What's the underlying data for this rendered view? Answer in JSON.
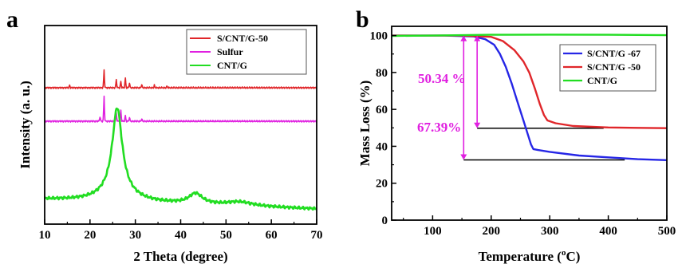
{
  "colors": {
    "red": "#e0262a",
    "magenta": "#e020e0",
    "green": "#22dd22",
    "blue": "#2626e6",
    "black": "#000000",
    "annotation": "#e020e0"
  },
  "chart_data": [
    {
      "panel_label": "a",
      "type": "line",
      "xlabel": "2 Theta (degree)",
      "ylabel": "Intensity (a. u.)",
      "xlim": [
        10,
        70
      ],
      "x_ticks": [
        "10",
        "20",
        "30",
        "40",
        "50",
        "60",
        "70"
      ],
      "y_ticks_labeled": false,
      "legend_position": "top-right",
      "legend": [
        {
          "label": "S/CNT/G-50",
          "color": "#e0262a"
        },
        {
          "label": "Sulfur",
          "color": "#e020e0"
        },
        {
          "label": "CNT/G",
          "color": "#22dd22"
        }
      ],
      "series": [
        {
          "name": "S/CNT/G-50",
          "color": "#e0262a",
          "baseline": 110,
          "peaks": [
            [
              23.1,
              22
            ],
            [
              25.8,
              10
            ],
            [
              26.8,
              8
            ],
            [
              27.8,
              12
            ],
            [
              28.7,
              6
            ],
            [
              31.4,
              4
            ],
            [
              15.5,
              3
            ],
            [
              34.2,
              3
            ],
            [
              37.0,
              2
            ]
          ]
        },
        {
          "name": "Sulfur",
          "color": "#e020e0",
          "baseline": 152,
          "peaks": [
            [
              23.1,
              31
            ],
            [
              22.2,
              6
            ],
            [
              25.8,
              10
            ],
            [
              26.8,
              14
            ],
            [
              27.8,
              7
            ],
            [
              28.7,
              5
            ],
            [
              31.4,
              3
            ]
          ]
        },
        {
          "name": "CNT/G",
          "color": "#22dd22",
          "baseline_start": 250,
          "baseline_end": 262,
          "broad_peaks": [
            [
              26.0,
              104,
              1.3
            ],
            [
              26.0,
              14,
              4.0
            ],
            [
              43.3,
              13,
              1.8
            ],
            [
              53.0,
              5,
              3.5
            ]
          ]
        }
      ]
    },
    {
      "panel_label": "b",
      "type": "line",
      "xlabel": "Temperature (oC)",
      "ylabel": "Mass Loss (%)",
      "xlim": [
        30,
        500
      ],
      "ylim": [
        0,
        105
      ],
      "x_ticks": [
        100,
        200,
        300,
        400,
        500
      ],
      "y_ticks": [
        0,
        20,
        40,
        60,
        80,
        100
      ],
      "legend_position": "top-right",
      "legend": [
        {
          "label": "S/CNT/G -67",
          "color": "#2626e6"
        },
        {
          "label": "S/CNT/G -50",
          "color": "#e0262a"
        },
        {
          "label": "CNT/G",
          "color": "#22dd22"
        }
      ],
      "annotations": [
        "50.34 %",
        "67.39%"
      ],
      "series": [
        {
          "name": "S/CNT/G -67",
          "color": "#2626e6",
          "x": [
            30,
            120,
            170,
            190,
            205,
            215,
            225,
            235,
            245,
            255,
            262,
            268,
            272,
            280,
            300,
            350,
            400,
            450,
            500
          ],
          "y": [
            100,
            100,
            99.5,
            98,
            95,
            90,
            83,
            74,
            64,
            54,
            47,
            41,
            38.5,
            38,
            37,
            35,
            34,
            33,
            32.5
          ]
        },
        {
          "name": "S/CNT/G -50",
          "color": "#e0262a",
          "x": [
            30,
            150,
            200,
            220,
            240,
            255,
            265,
            275,
            283,
            290,
            296,
            310,
            340,
            400,
            450,
            500
          ],
          "y": [
            100,
            100,
            99.3,
            97,
            92,
            86,
            80,
            71,
            63,
            57,
            54,
            52.5,
            51,
            50.2,
            50,
            49.8
          ]
        },
        {
          "name": "CNT/G",
          "color": "#22dd22",
          "x": [
            30,
            100,
            200,
            300,
            400,
            500
          ],
          "y": [
            99.8,
            100,
            100.4,
            100.5,
            100.4,
            100.2
          ]
        }
      ]
    }
  ]
}
